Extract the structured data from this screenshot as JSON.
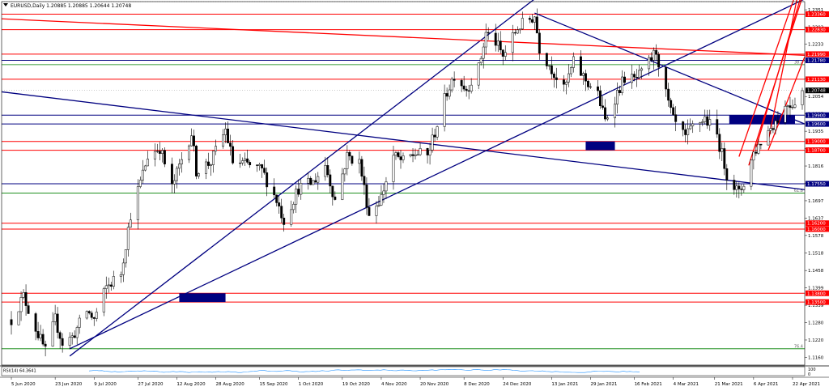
{
  "header": {
    "title": "EURUSD,Daily  1.20885 1.20885 1.20644 1.20748"
  },
  "chart_data": {
    "type": "candlestick",
    "symbol": "EURUSD",
    "timeframe": "Daily",
    "ohlc_header": {
      "open": 1.20885,
      "high": 1.20885,
      "low": 1.20644,
      "close": 1.20748
    },
    "current_price": 1.20748,
    "ylim": [
      1.1134,
      1.2379
    ],
    "x_ticks": [
      "5 Jun 2020",
      "23 Jun 2020",
      "9 Jul 2020",
      "27 Jul 2020",
      "12 Aug 2020",
      "28 Aug 2020",
      "15 Sep 2020",
      "1 Oct 2020",
      "19 Oct 2020",
      "4 Nov 2020",
      "20 Nov 2020",
      "8 Dec 2020",
      "24 Dec 2020",
      "13 Jan 2021",
      "29 Jan 2021",
      "16 Feb 2021",
      "4 Mar 2021",
      "21 Mar 2021",
      "6 Apr 2021",
      "22 Apr 2021"
    ],
    "y_ticks": [
      1.2351,
      1.2292,
      1.2233,
      1.2174,
      1.2114,
      1.2054,
      1.1995,
      1.1935,
      1.1875,
      1.1816,
      1.1756,
      1.1697,
      1.1637,
      1.1578,
      1.1518,
      1.1458,
      1.1399,
      1.1339,
      1.128,
      1.122,
      1.116
    ],
    "price_levels": [
      {
        "label": "1.23360",
        "value": 1.2336,
        "color": "#ff0000"
      },
      {
        "label": "1.22830",
        "value": 1.2283,
        "color": "#ff0000"
      },
      {
        "label": "1.21990",
        "value": 1.2199,
        "color": "#ff0000"
      },
      {
        "label": "1.21780",
        "value": 1.2178,
        "color": "#000080"
      },
      {
        "label": "1.21130",
        "value": 1.2113,
        "color": "#ff0000"
      },
      {
        "label": "1.19900",
        "value": 1.199,
        "color": "#000080"
      },
      {
        "label": "1.19600",
        "value": 1.196,
        "color": "#000080"
      },
      {
        "label": "1.19000",
        "value": 1.19,
        "color": "#ff0000"
      },
      {
        "label": "1.18700",
        "value": 1.187,
        "color": "#ff0000"
      },
      {
        "label": "1.17550",
        "value": 1.1755,
        "color": "#000080"
      },
      {
        "label": "1.16200",
        "value": 1.162,
        "color": "#ff0000"
      },
      {
        "label": "1.16000",
        "value": 1.16,
        "color": "#ff0000"
      },
      {
        "label": "1.13800",
        "value": 1.138,
        "color": "#ff0000"
      },
      {
        "label": "1.13500",
        "value": 1.135,
        "color": "#ff0000"
      }
    ],
    "green_levels": [
      {
        "label": "38.2",
        "value": 1.2163
      },
      {
        "label": "61.8",
        "value": 1.1723
      },
      {
        "label": "76.4",
        "value": 1.119
      }
    ],
    "dotted_levels": [
      1.2379,
      1.2075
    ],
    "trendlines": [
      {
        "color": "#000080",
        "from": [
          "2020-06-29",
          1.119
        ],
        "to": [
          "2021-04-27",
          1.2388
        ]
      },
      {
        "color": "#000080",
        "from": [
          "2020-06-01",
          1.207
        ],
        "to": [
          "2021-04-27",
          1.1735
        ]
      },
      {
        "color": "#000080",
        "from": [
          "2020-06-29",
          1.1165
        ],
        "to": [
          "2021-01-06",
          1.2388
        ]
      },
      {
        "color": "#000080",
        "from": [
          "2021-01-06",
          1.234
        ],
        "to": [
          "2021-04-27",
          1.196
        ]
      },
      {
        "color": "#ff0000",
        "from": [
          "2020-06-01",
          1.232
        ],
        "to": [
          "2021-04-27",
          1.2195
        ]
      },
      {
        "color": "#ff0000",
        "from": [
          "2021-03-31",
          1.1848
        ],
        "to": [
          "2021-04-27",
          1.2495
        ]
      },
      {
        "color": "#ff0000",
        "from": [
          "2021-04-04",
          1.1818
        ],
        "to": [
          "2021-04-27",
          1.242
        ]
      },
      {
        "color": "#ff0000",
        "from": [
          "2021-04-07",
          1.188
        ],
        "to": [
          "2021-04-27",
          1.244
        ]
      },
      {
        "color": "#ff0000",
        "from": [
          "2021-04-12",
          1.19
        ],
        "to": [
          "2021-04-27",
          1.252
        ]
      },
      {
        "color": "#ff0000",
        "from": [
          "2021-04-12",
          1.187
        ],
        "to": [
          "2021-04-27",
          1.219
        ]
      }
    ],
    "zones": [
      {
        "from": "2020-08-13",
        "to": "2020-09-01",
        "low": 1.135,
        "high": 1.138
      },
      {
        "from": "2021-01-27",
        "to": "2021-02-08",
        "low": 1.187,
        "high": 1.19
      },
      {
        "from": "2021-03-27",
        "to": "2021-04-23",
        "low": 1.196,
        "high": 1.199
      }
    ],
    "waypoints": [
      [
        "2020-06-05",
        1.129
      ],
      [
        "2020-06-10",
        1.137
      ],
      [
        "2020-06-15",
        1.126
      ],
      [
        "2020-06-19",
        1.118
      ],
      [
        "2020-06-23",
        1.129
      ],
      [
        "2020-06-26",
        1.121
      ],
      [
        "2020-06-30",
        1.123
      ],
      [
        "2020-07-06",
        1.132
      ],
      [
        "2020-07-09",
        1.129
      ],
      [
        "2020-07-14",
        1.14
      ],
      [
        "2020-07-20",
        1.145
      ],
      [
        "2020-07-24",
        1.165
      ],
      [
        "2020-07-28",
        1.176
      ],
      [
        "2020-07-31",
        1.185
      ],
      [
        "2020-08-05",
        1.188
      ],
      [
        "2020-08-10",
        1.174
      ],
      [
        "2020-08-14",
        1.184
      ],
      [
        "2020-08-18",
        1.193
      ],
      [
        "2020-08-20",
        1.18
      ],
      [
        "2020-08-26",
        1.183
      ],
      [
        "2020-09-01",
        1.194
      ],
      [
        "2020-09-04",
        1.183
      ],
      [
        "2020-09-10",
        1.182
      ],
      [
        "2020-09-16",
        1.18
      ],
      [
        "2020-09-22",
        1.17
      ],
      [
        "2020-09-25",
        1.163
      ],
      [
        "2020-10-01",
        1.174
      ],
      [
        "2020-10-07",
        1.176
      ],
      [
        "2020-10-12",
        1.182
      ],
      [
        "2020-10-16",
        1.17
      ],
      [
        "2020-10-21",
        1.185
      ],
      [
        "2020-10-26",
        1.183
      ],
      [
        "2020-10-30",
        1.165
      ],
      [
        "2020-11-04",
        1.171
      ],
      [
        "2020-11-09",
        1.185
      ],
      [
        "2020-11-13",
        1.183
      ],
      [
        "2020-11-18",
        1.186
      ],
      [
        "2020-11-23",
        1.185
      ],
      [
        "2020-11-27",
        1.196
      ],
      [
        "2020-12-01",
        1.207
      ],
      [
        "2020-12-04",
        1.213
      ],
      [
        "2020-12-09",
        1.208
      ],
      [
        "2020-12-14",
        1.215
      ],
      [
        "2020-12-17",
        1.227
      ],
      [
        "2020-12-21",
        1.224
      ],
      [
        "2020-12-24",
        1.219
      ],
      [
        "2020-12-30",
        1.229
      ],
      [
        "2021-01-06",
        1.233
      ],
      [
        "2021-01-08",
        1.222
      ],
      [
        "2021-01-13",
        1.215
      ],
      [
        "2021-01-18",
        1.2075
      ],
      [
        "2021-01-22",
        1.217
      ],
      [
        "2021-01-27",
        1.211
      ],
      [
        "2021-02-01",
        1.206
      ],
      [
        "2021-02-04",
        1.197
      ],
      [
        "2021-02-08",
        1.205
      ],
      [
        "2021-02-12",
        1.212
      ],
      [
        "2021-02-16",
        1.211
      ],
      [
        "2021-02-19",
        1.213
      ],
      [
        "2021-02-25",
        1.221
      ],
      [
        "2021-03-01",
        1.206
      ],
      [
        "2021-03-04",
        1.197
      ],
      [
        "2021-03-09",
        1.191
      ],
      [
        "2021-03-12",
        1.195
      ],
      [
        "2021-03-17",
        1.198
      ],
      [
        "2021-03-22",
        1.192
      ],
      [
        "2021-03-26",
        1.179
      ],
      [
        "2021-03-31",
        1.172
      ],
      [
        "2021-04-02",
        1.176
      ],
      [
        "2021-04-06",
        1.186
      ],
      [
        "2021-04-09",
        1.19
      ],
      [
        "2021-04-13",
        1.195
      ],
      [
        "2021-04-16",
        1.198
      ],
      [
        "2021-04-20",
        1.203
      ],
      [
        "2021-04-22",
        1.203
      ],
      [
        "2021-04-26",
        1.2075
      ]
    ]
  },
  "rsi": {
    "label": "RSI(14) 64.3641",
    "value": 64.3641,
    "scale_top": "100",
    "scale_bottom": "0"
  }
}
